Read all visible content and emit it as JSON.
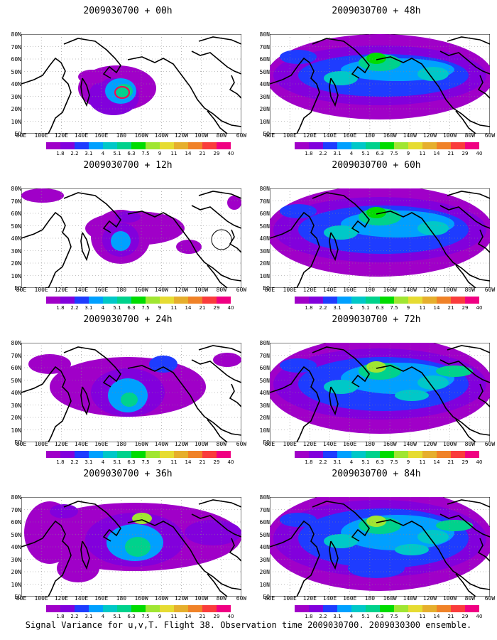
{
  "caption": "Signal Variance for u,v,T. Flight 38. Observation time 2009030700. 2009030300 ensemble.",
  "lat_labels": [
    "80N",
    "70N",
    "60N",
    "50N",
    "40N",
    "30N",
    "20N",
    "10N",
    "EQ"
  ],
  "lon_labels": [
    "80E",
    "100E",
    "120E",
    "140E",
    "160E",
    "180",
    "160W",
    "140W",
    "120W",
    "100W",
    "80W",
    "60W"
  ],
  "colorbar": {
    "labels": [
      "1.8",
      "2.2",
      "3.1",
      "4",
      "5.1",
      "6.3",
      "7.5",
      "9",
      "11",
      "14",
      "21",
      "29",
      "40"
    ],
    "colors": [
      "#a000c8",
      "#8200dc",
      "#1e3cff",
      "#00a0ff",
      "#00c8c8",
      "#00d28c",
      "#00dc00",
      "#a0e632",
      "#e6dc32",
      "#e6af2d",
      "#f08228",
      "#fa3c3c",
      "#f00082"
    ]
  },
  "panels": [
    {
      "title": "2009030700 + 00h",
      "level": 0
    },
    {
      "title": "2009030700 + 48h",
      "level": 4
    },
    {
      "title": "2009030700 + 12h",
      "level": 1
    },
    {
      "title": "2009030700 + 60h",
      "level": 5
    },
    {
      "title": "2009030700 + 24h",
      "level": 2
    },
    {
      "title": "2009030700 + 72h",
      "level": 6
    },
    {
      "title": "2009030700 + 36h",
      "level": 3
    },
    {
      "title": "2009030700 + 84h",
      "level": 7
    }
  ]
}
